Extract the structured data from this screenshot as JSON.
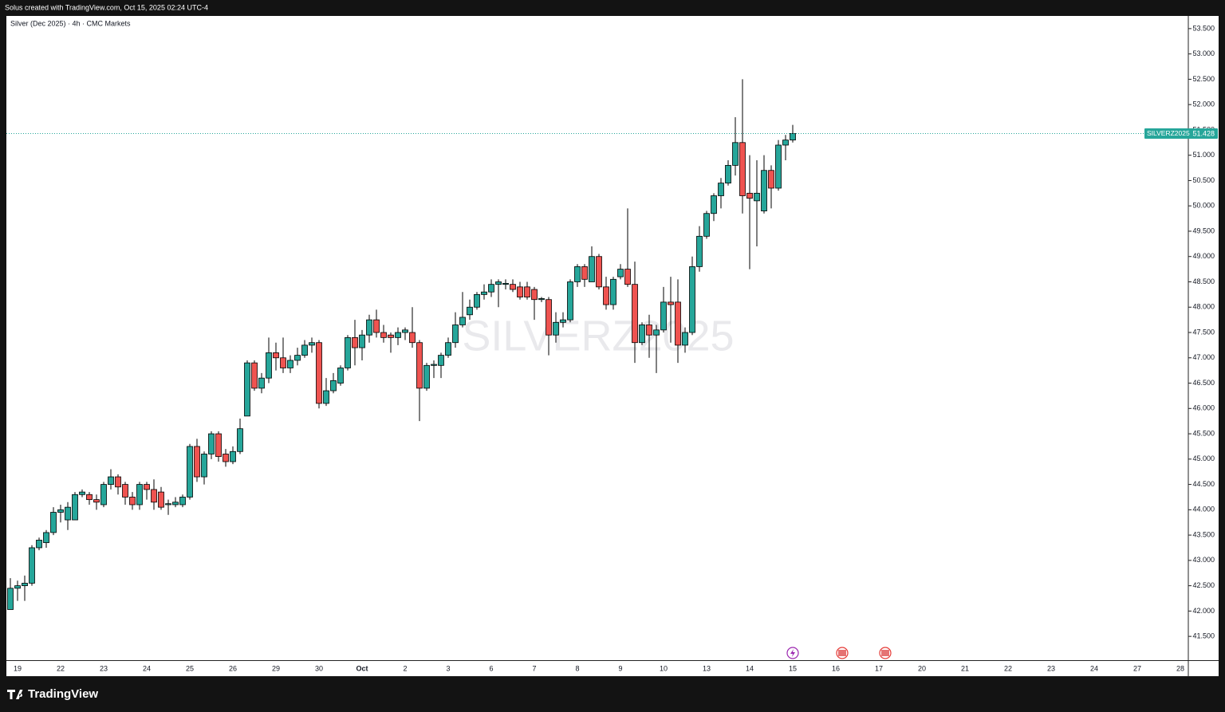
{
  "header": "Solus created with TradingView.com, Oct 15, 2025 02:24 UTC-4",
  "footer_brand": "TradingView",
  "chart_data": {
    "type": "candlestick",
    "title": "Silver (Dec 2025) · 4h · CMC Markets",
    "symbol": "SILVERZ2025",
    "last_price": 51.428,
    "up_color": "#26a69a",
    "down_color": "#ef5350",
    "ylim": [
      41.03,
      53.75
    ],
    "yticks": [
      {
        "value": 41.5,
        "label": "41.500"
      },
      {
        "value": 42,
        "label": "42.000"
      },
      {
        "value": 42.5,
        "label": "42.500"
      },
      {
        "value": 43,
        "label": "43.000"
      },
      {
        "value": 43.5,
        "label": "43.500"
      },
      {
        "value": 44,
        "label": "44.000"
      },
      {
        "value": 44.5,
        "label": "44.500"
      },
      {
        "value": 45,
        "label": "45.000"
      },
      {
        "value": 45.5,
        "label": "45.500"
      },
      {
        "value": 46,
        "label": "46.000"
      },
      {
        "value": 46.5,
        "label": "46.500"
      },
      {
        "value": 47,
        "label": "47.000"
      },
      {
        "value": 47.5,
        "label": "47.500"
      },
      {
        "value": 48,
        "label": "48.000"
      },
      {
        "value": 48.5,
        "label": "48.500"
      },
      {
        "value": 49,
        "label": "49.000"
      },
      {
        "value": 49.5,
        "label": "49.500"
      },
      {
        "value": 50,
        "label": "50.000"
      },
      {
        "value": 50.5,
        "label": "50.500"
      },
      {
        "value": 51,
        "label": "51.000"
      },
      {
        "value": 51.5,
        "label": "51.500"
      },
      {
        "value": 52,
        "label": "52.000"
      },
      {
        "value": 52.5,
        "label": "52.500"
      },
      {
        "value": 53,
        "label": "53.000"
      },
      {
        "value": 53.5,
        "label": "53.500"
      }
    ],
    "categories": [
      null,
      "19",
      null,
      null,
      null,
      null,
      null,
      "22",
      null,
      null,
      null,
      null,
      null,
      "23",
      null,
      null,
      null,
      null,
      null,
      "24",
      null,
      null,
      null,
      null,
      null,
      "25",
      null,
      null,
      null,
      null,
      null,
      "26",
      null,
      null,
      null,
      null,
      null,
      "29",
      null,
      null,
      null,
      null,
      null,
      "30",
      null,
      null,
      null,
      null,
      null,
      "Oct",
      null,
      null,
      null,
      null,
      null,
      "2",
      null,
      null,
      null,
      null,
      null,
      "3",
      null,
      null,
      null,
      null,
      null,
      "6",
      null,
      null,
      null,
      null,
      null,
      "7",
      null,
      null,
      null,
      null,
      null,
      "8",
      null,
      null,
      null,
      null,
      null,
      "9",
      null,
      null,
      null,
      null,
      null,
      "10",
      null,
      null,
      null,
      null,
      null,
      "13",
      null,
      null,
      null,
      null,
      null,
      "14",
      null,
      null,
      null,
      null,
      null,
      "15",
      null,
      null,
      null,
      null,
      null,
      "16",
      null,
      null,
      null,
      null,
      null,
      "17",
      null,
      null,
      null,
      null,
      null,
      "20",
      null,
      null,
      null,
      null,
      null,
      "21",
      null,
      null,
      null,
      null,
      null,
      "22",
      null,
      null,
      null,
      null,
      null,
      "23",
      null,
      null,
      null,
      null,
      null,
      "24",
      null,
      null,
      null,
      null,
      null,
      "27",
      null,
      null,
      null,
      null,
      null,
      "28"
    ],
    "open": [
      42.03,
      42.45,
      42.5,
      42.55,
      43.25,
      43.35,
      43.55,
      43.95,
      43.8,
      43.8,
      44.3,
      44.3,
      44.2,
      44.1,
      44.5,
      44.65,
      44.5,
      44.25,
      44.1,
      44.5,
      44.4,
      44.35,
      44.1,
      44.1,
      44.1,
      44.25,
      45.25,
      44.65,
      45.1,
      45.5,
      45.1,
      44.95,
      45.15,
      45.85,
      46.9,
      46.4,
      46.6,
      47.1,
      47.0,
      46.8,
      46.95,
      47.05,
      47.25,
      47.3,
      46.1,
      46.35,
      46.5,
      46.8,
      47.4,
      47.2,
      47.45,
      47.75,
      47.5,
      47.45,
      47.4,
      47.5,
      47.5,
      47.3,
      46.4,
      46.85,
      46.85,
      47.05,
      47.3,
      47.65,
      47.85,
      48.0,
      48.25,
      48.3,
      48.45,
      48.45,
      48.45,
      48.4,
      48.4,
      48.35,
      48.15,
      48.15,
      47.45,
      47.7,
      47.75,
      48.5,
      48.8,
      48.5,
      49.0,
      48.4,
      48.05,
      48.6,
      48.75,
      48.45,
      47.3,
      47.65,
      47.45,
      47.55,
      48.1,
      48.1,
      47.25,
      47.5,
      48.8,
      49.4,
      49.85,
      50.2,
      50.45,
      50.8,
      51.25,
      50.25,
      50.1,
      49.9,
      50.7,
      50.35,
      51.2,
      51.3,
      null,
      null,
      null,
      null,
      null,
      null,
      null,
      null,
      null,
      null,
      null,
      null,
      null,
      null,
      null,
      null,
      null,
      null,
      null,
      null,
      null,
      null,
      null,
      null,
      null,
      null,
      null,
      null,
      null,
      null,
      null,
      null,
      null,
      null,
      null,
      null,
      null,
      null,
      null,
      null,
      null,
      null,
      null,
      null,
      null,
      null,
      null,
      null,
      null,
      null,
      null,
      null,
      null,
      null
    ],
    "high": [
      42.65,
      42.6,
      42.7,
      43.3,
      43.45,
      43.6,
      44.05,
      44.1,
      44.15,
      44.35,
      44.4,
      44.35,
      44.3,
      44.55,
      44.8,
      44.7,
      44.55,
      44.35,
      44.55,
      44.55,
      44.6,
      44.45,
      44.2,
      44.25,
      44.3,
      45.3,
      45.4,
      45.15,
      45.55,
      45.55,
      45.2,
      45.25,
      45.8,
      46.95,
      46.95,
      46.7,
      47.4,
      47.3,
      47.4,
      47.05,
      47.2,
      47.35,
      47.4,
      47.35,
      46.6,
      46.7,
      46.85,
      47.45,
      47.75,
      47.55,
      47.85,
      47.95,
      47.65,
      47.5,
      47.6,
      47.6,
      48.0,
      47.35,
      46.9,
      46.95,
      47.1,
      47.4,
      47.9,
      48.3,
      48.15,
      48.3,
      48.45,
      48.55,
      48.55,
      48.55,
      48.55,
      48.5,
      48.5,
      48.4,
      48.2,
      48.2,
      47.9,
      47.9,
      48.55,
      48.85,
      48.85,
      49.2,
      49.05,
      48.6,
      48.6,
      48.85,
      49.95,
      48.9,
      47.7,
      47.85,
      47.65,
      48.4,
      48.6,
      48.55,
      47.6,
      49.0,
      49.6,
      49.9,
      50.25,
      50.55,
      50.9,
      51.75,
      52.5,
      51.0,
      50.9,
      51.0,
      50.8,
      51.3,
      51.4,
      51.6,
      null,
      null,
      null,
      null,
      null,
      null,
      null,
      null,
      null,
      null,
      null,
      null,
      null,
      null,
      null,
      null,
      null,
      null,
      null,
      null,
      null,
      null,
      null,
      null,
      null,
      null,
      null,
      null,
      null,
      null,
      null,
      null,
      null,
      null,
      null,
      null,
      null,
      null,
      null,
      null,
      null,
      null,
      null,
      null,
      null,
      null,
      null,
      null,
      null,
      null,
      null,
      null,
      null,
      null
    ],
    "low": [
      42.03,
      42.2,
      42.2,
      42.5,
      43.2,
      43.25,
      43.5,
      43.75,
      43.6,
      43.8,
      44.25,
      44.1,
      44.0,
      44.05,
      44.4,
      44.3,
      44.1,
      44.0,
      44.0,
      44.2,
      44.0,
      44.0,
      43.9,
      44.05,
      44.05,
      44.2,
      44.55,
      44.5,
      45.0,
      44.95,
      44.85,
      44.9,
      45.1,
      45.85,
      46.35,
      46.3,
      46.5,
      46.75,
      46.7,
      46.7,
      46.85,
      47.0,
      47.1,
      46.0,
      46.05,
      46.3,
      46.45,
      46.75,
      46.85,
      46.95,
      47.3,
      47.4,
      47.3,
      47.1,
      47.25,
      47.35,
      47.2,
      45.75,
      46.35,
      46.6,
      46.6,
      47.0,
      47.2,
      47.6,
      47.75,
      47.95,
      48.15,
      48.2,
      48.0,
      48.35,
      48.3,
      48.15,
      48.15,
      47.75,
      48.1,
      47.05,
      47.3,
      47.6,
      47.7,
      48.4,
      48.4,
      48.5,
      48.35,
      47.95,
      47.95,
      48.55,
      48.4,
      46.9,
      47.25,
      47.0,
      46.7,
      47.5,
      47.3,
      46.9,
      47.1,
      47.45,
      48.7,
      49.35,
      49.7,
      49.95,
      50.4,
      50.6,
      49.85,
      48.75,
      49.2,
      49.85,
      49.95,
      50.3,
      50.9,
      51.25,
      null,
      null,
      null,
      null,
      null,
      null,
      null,
      null,
      null,
      null,
      null,
      null,
      null,
      null,
      null,
      null,
      null,
      null,
      null,
      null,
      null,
      null,
      null,
      null,
      null,
      null,
      null,
      null,
      null,
      null,
      null,
      null,
      null,
      null,
      null,
      null,
      null,
      null,
      null,
      null,
      null,
      null,
      null,
      null,
      null,
      null,
      null,
      null,
      null,
      null,
      null,
      null,
      null,
      null
    ],
    "close": [
      42.45,
      42.5,
      42.55,
      43.25,
      43.4,
      43.55,
      43.95,
      44.0,
      44.05,
      44.3,
      44.35,
      44.2,
      44.15,
      44.5,
      44.65,
      44.45,
      44.25,
      44.1,
      44.5,
      44.4,
      44.15,
      44.05,
      44.12,
      44.15,
      44.25,
      45.25,
      44.65,
      45.1,
      45.5,
      45.05,
      44.95,
      45.15,
      45.6,
      46.9,
      46.4,
      46.6,
      47.1,
      47.0,
      46.8,
      46.95,
      47.05,
      47.25,
      47.3,
      46.1,
      46.35,
      46.55,
      46.8,
      47.4,
      47.2,
      47.45,
      47.75,
      47.5,
      47.4,
      47.4,
      47.5,
      47.55,
      47.3,
      46.4,
      46.85,
      46.87,
      47.05,
      47.3,
      47.65,
      47.8,
      48.0,
      48.25,
      48.3,
      48.45,
      48.5,
      48.47,
      48.35,
      48.2,
      48.2,
      48.15,
      48.17,
      47.45,
      47.7,
      47.75,
      48.5,
      48.8,
      48.55,
      49.0,
      48.4,
      48.05,
      48.55,
      48.75,
      48.45,
      47.3,
      47.65,
      47.45,
      47.55,
      48.1,
      48.05,
      47.25,
      47.5,
      48.8,
      49.4,
      49.85,
      50.2,
      50.45,
      50.8,
      51.25,
      50.2,
      50.15,
      50.25,
      50.7,
      50.35,
      51.2,
      51.3,
      51.43,
      null,
      null,
      null,
      null,
      null,
      null,
      null,
      null,
      null,
      null,
      null,
      null,
      null,
      null,
      null,
      null,
      null,
      null,
      null,
      null,
      null,
      null,
      null,
      null,
      null,
      null,
      null,
      null,
      null,
      null,
      null,
      null,
      null,
      null,
      null,
      null,
      null,
      null,
      null,
      null,
      null,
      null,
      null,
      null,
      null,
      null,
      null,
      null,
      null,
      null,
      null,
      null,
      null,
      null
    ]
  }
}
